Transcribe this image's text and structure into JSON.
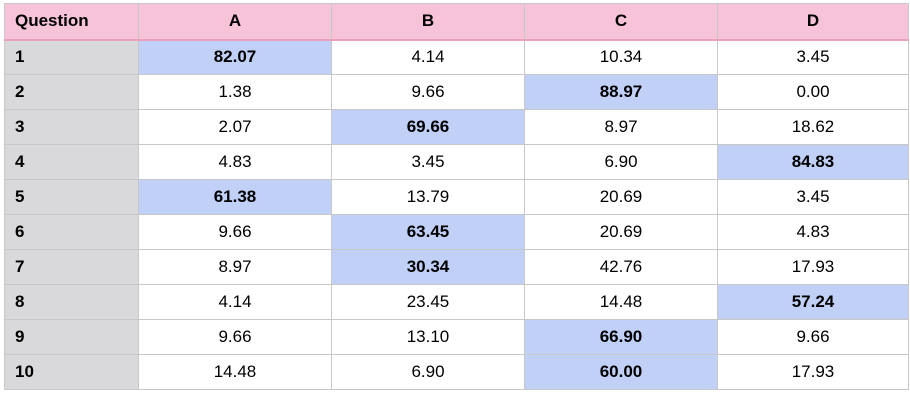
{
  "table": {
    "headers": [
      "Question",
      "A",
      "B",
      "C",
      "D"
    ],
    "highlight_color": "#c0d0f7",
    "header_color": "#f7c3d8",
    "rows": [
      {
        "q": "1",
        "values": [
          "82.07",
          "4.14",
          "10.34",
          "3.45"
        ],
        "highlight": 0
      },
      {
        "q": "2",
        "values": [
          "1.38",
          "9.66",
          "88.97",
          "0.00"
        ],
        "highlight": 2
      },
      {
        "q": "3",
        "values": [
          "2.07",
          "69.66",
          "8.97",
          "18.62"
        ],
        "highlight": 1
      },
      {
        "q": "4",
        "values": [
          "4.83",
          "3.45",
          "6.90",
          "84.83"
        ],
        "highlight": 3
      },
      {
        "q": "5",
        "values": [
          "61.38",
          "13.79",
          "20.69",
          "3.45"
        ],
        "highlight": 0
      },
      {
        "q": "6",
        "values": [
          "9.66",
          "63.45",
          "20.69",
          "4.83"
        ],
        "highlight": 1
      },
      {
        "q": "7",
        "values": [
          "8.97",
          "30.34",
          "42.76",
          "17.93"
        ],
        "highlight": 1
      },
      {
        "q": "8",
        "values": [
          "4.14",
          "23.45",
          "14.48",
          "57.24"
        ],
        "highlight": 3
      },
      {
        "q": "9",
        "values": [
          "9.66",
          "13.10",
          "66.90",
          "9.66"
        ],
        "highlight": 2
      },
      {
        "q": "10",
        "values": [
          "14.48",
          "6.90",
          "60.00",
          "17.93"
        ],
        "highlight": 2
      }
    ]
  }
}
